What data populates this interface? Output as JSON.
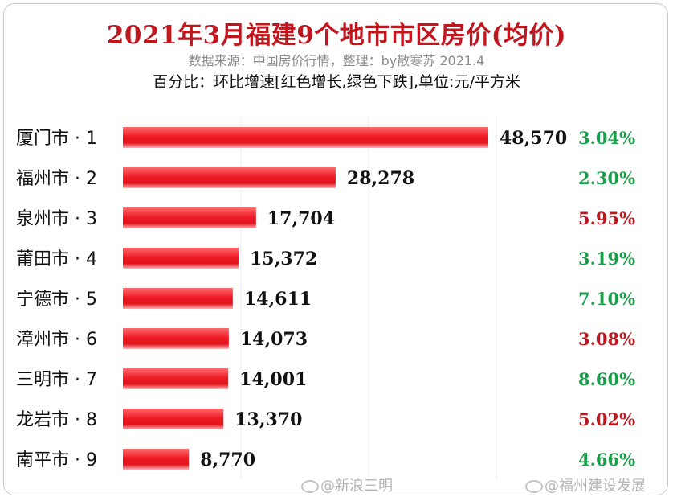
{
  "header": {
    "title": "2021年3月福建9个地市市区房价(均价)",
    "subtitle": "数据来源：中国房价行情，整理：by散寒苏 2021.4",
    "note": "百分比：环比增速[红色增长,绿色下跌],单位:元/平方米"
  },
  "chart_data": {
    "type": "bar",
    "orientation": "horizontal",
    "categories": [
      "厦门市 · 1",
      "福州市 · 2",
      "泉州市 · 3",
      "莆田市 · 4",
      "宁德市 · 5",
      "漳州市 · 6",
      "三明市 · 7",
      "龙岩市 · 8",
      "南平市 · 9"
    ],
    "values": [
      48570,
      28278,
      17704,
      15372,
      14611,
      14073,
      14001,
      13370,
      8770
    ],
    "value_labels": [
      "48,570",
      "28,278",
      "17,704",
      "15,372",
      "14,611",
      "14,073",
      "14,001",
      "13,370",
      "8,770"
    ],
    "change_labels": [
      "3.04%",
      "2.30%",
      "5.95%",
      "3.19%",
      "7.10%",
      "3.08%",
      "8.60%",
      "5.02%",
      "4.66%"
    ],
    "change_colors": [
      "#1a9e4a",
      "#1a9e4a",
      "#c0171f",
      "#1a9e4a",
      "#1a9e4a",
      "#c0171f",
      "#1a9e4a",
      "#c0171f",
      "#1a9e4a"
    ],
    "bar_color": "#e8141c",
    "xlim": [
      0,
      50000
    ],
    "grid": true,
    "legend": false
  },
  "watermarks": [
    "@新浪三明",
    "@福州建设发展"
  ]
}
